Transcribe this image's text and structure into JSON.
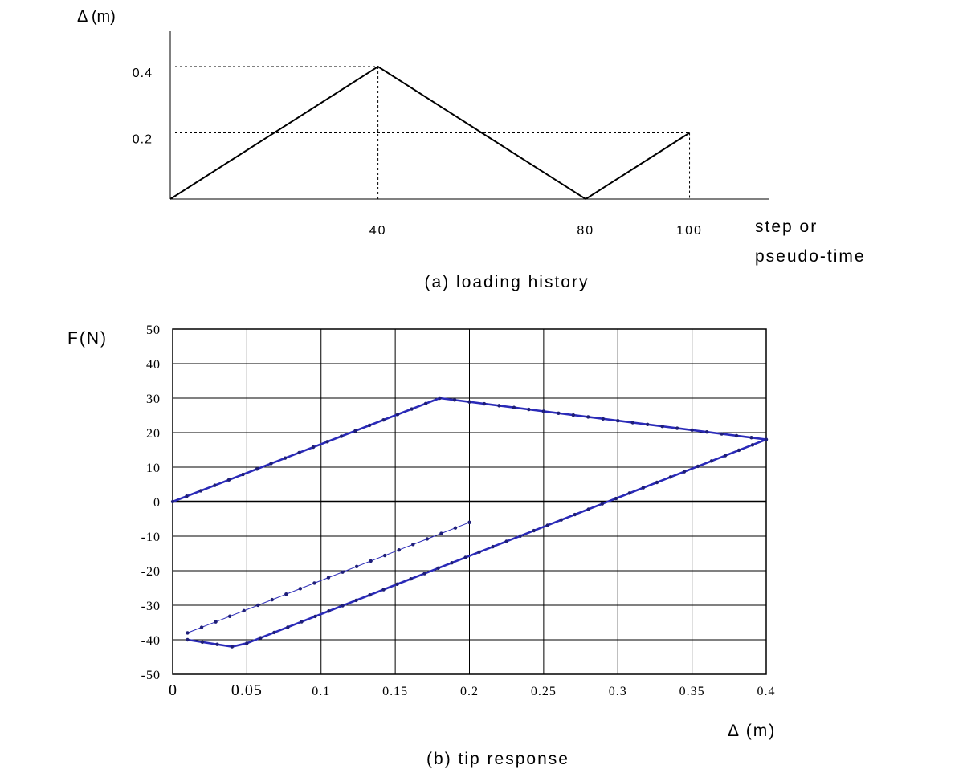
{
  "chart_data": [
    {
      "type": "line",
      "caption": "(a) loading history",
      "ylabel": "Δ (m)",
      "xlabel_lines": [
        "step or",
        "pseudo-time"
      ],
      "x_ticks": [
        "40",
        "80",
        "100"
      ],
      "y_ticks": [
        "0.4",
        "0.2"
      ],
      "xlim": [
        0,
        120
      ],
      "ylim": [
        0,
        0.4
      ],
      "grid": false,
      "series": [
        {
          "x": [
            0,
            40,
            80,
            100
          ],
          "y": [
            0,
            0.4,
            0,
            0.2
          ]
        }
      ],
      "guide_lines": [
        {
          "x": 40,
          "y": 0.4
        },
        {
          "x": 100,
          "y": 0.2
        }
      ]
    },
    {
      "type": "line",
      "caption": "(b) tip response",
      "ylabel": "F(N)",
      "xlabel": "Δ (m)",
      "xlim": [
        0,
        0.4
      ],
      "ylim": [
        -50,
        50
      ],
      "grid": true,
      "x_ticks": [
        "0",
        "0.05",
        "0.1",
        "0.15",
        "0.2",
        "0.25",
        "0.3",
        "0.35",
        "0.4"
      ],
      "y_ticks": [
        "50",
        "40",
        "30",
        "20",
        "10",
        "0",
        "-10",
        "-20",
        "-30",
        "-40",
        "-50"
      ],
      "series": [
        {
          "style": "solid-blue",
          "x": [
            0,
            0.18,
            0.4,
            0.05,
            0.04,
            0.01
          ],
          "y": [
            0,
            30,
            18,
            -41,
            -42,
            -40
          ]
        },
        {
          "style": "dotted",
          "x": [
            0,
            0.18,
            0.4,
            0.05,
            0.04,
            0.01
          ],
          "y": [
            0,
            30,
            18,
            -41,
            -42,
            -40
          ]
        },
        {
          "style": "thin-dotted",
          "x": [
            0.01,
            0.2
          ],
          "y": [
            -38,
            -6
          ]
        }
      ]
    }
  ]
}
